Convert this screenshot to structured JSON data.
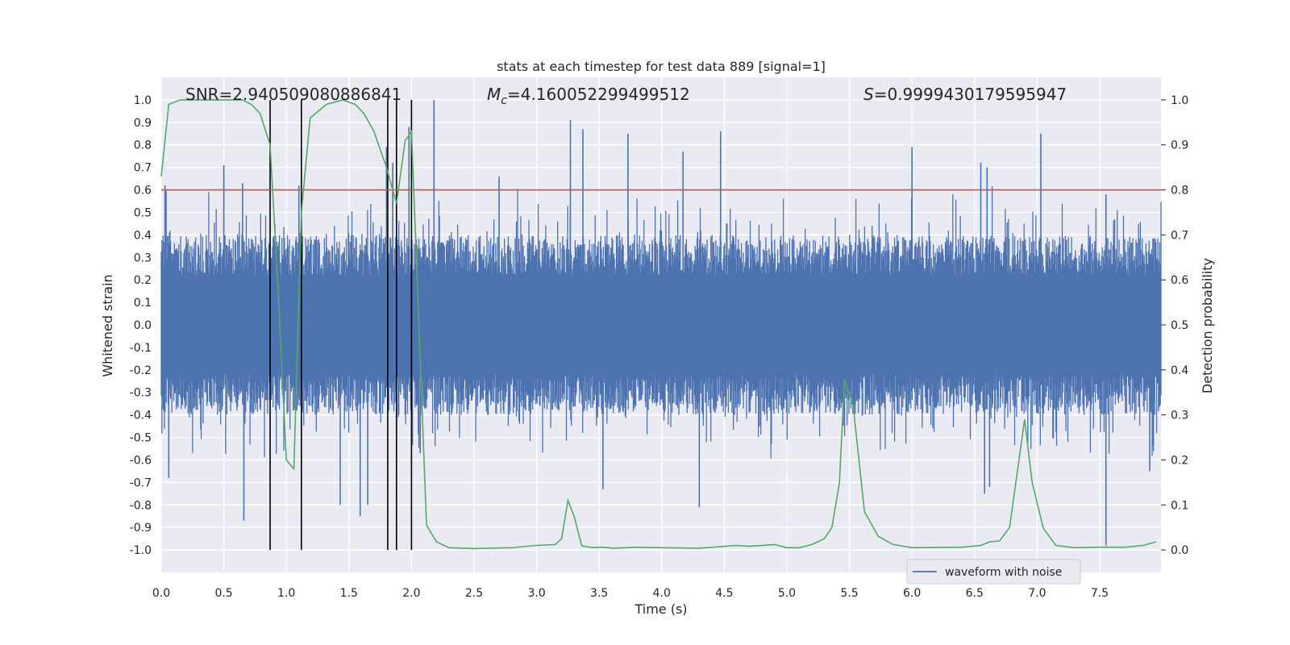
{
  "chart_data": {
    "type": "line",
    "title": "stats at each timestep for test data 889 [signal=1]",
    "xlabel": "Time (s)",
    "ylabel": "Whitened strain",
    "y2label": "Detection probability",
    "xlim": [
      0.0,
      7.99
    ],
    "ylim": [
      -1.1,
      1.1
    ],
    "y2lim": [
      -0.05,
      1.05
    ],
    "xticks": [
      "0.0",
      "0.5",
      "1.0",
      "1.5",
      "2.0",
      "2.5",
      "3.0",
      "3.5",
      "4.0",
      "4.5",
      "5.0",
      "5.5",
      "6.0",
      "6.5",
      "7.0",
      "7.5"
    ],
    "yticks": [
      "-1.0",
      "-0.9",
      "-0.8",
      "-0.7",
      "-0.6",
      "-0.5",
      "-0.4",
      "-0.3",
      "-0.2",
      "-0.1",
      "0.0",
      "0.1",
      "0.2",
      "0.3",
      "0.4",
      "0.5",
      "0.6",
      "0.7",
      "0.8",
      "0.9",
      "1.0"
    ],
    "y2ticks": [
      "0.0",
      "0.1",
      "0.2",
      "0.3",
      "0.4",
      "0.5",
      "0.6",
      "0.7",
      "0.8",
      "0.9",
      "1.0"
    ],
    "annotations": {
      "snr_label": "SNR=2.940509080886841",
      "mc_symbol": "M",
      "mc_subscript": "c",
      "mc_value": "=4.160052299499512",
      "s_symbol": "S",
      "s_value": "=0.9999430179595947"
    },
    "legend": {
      "label": "waveform with noise",
      "location": "lower-right"
    },
    "threshold": {
      "value": 0.8,
      "axis": "right",
      "color": "#c44e52"
    },
    "vlines": [
      0.87,
      1.12,
      1.81,
      1.88,
      2.0
    ],
    "series": [
      {
        "name": "waveform with noise",
        "axis": "left",
        "color": "#4c72b0",
        "note": "dense noisy whitened strain; values synthesized to match visible envelope and peaks",
        "envelope_top": 0.4,
        "envelope_bottom": -0.4,
        "peaks": [
          [
            0.03,
            0.62
          ],
          [
            0.5,
            0.71
          ],
          [
            0.65,
            0.63
          ],
          [
            1.1,
            0.62
          ],
          [
            1.8,
            0.79
          ],
          [
            1.85,
            0.72
          ],
          [
            1.98,
            0.88
          ],
          [
            2.18,
            1.0
          ],
          [
            2.7,
            0.66
          ],
          [
            3.27,
            0.91
          ],
          [
            3.37,
            0.87
          ],
          [
            3.73,
            0.85
          ],
          [
            4.17,
            0.77
          ],
          [
            4.47,
            0.86
          ],
          [
            6.0,
            0.79
          ],
          [
            6.55,
            0.72
          ],
          [
            6.6,
            0.7
          ],
          [
            7.03,
            0.85
          ],
          [
            7.55,
            0.58
          ],
          [
            0.06,
            -0.68
          ],
          [
            0.66,
            -0.87
          ],
          [
            1.43,
            -0.8
          ],
          [
            1.59,
            -0.85
          ],
          [
            1.65,
            -0.8
          ],
          [
            2.07,
            -0.57
          ],
          [
            3.53,
            -0.73
          ],
          [
            4.3,
            -0.81
          ],
          [
            6.58,
            -0.75
          ],
          [
            6.62,
            -0.72
          ],
          [
            7.55,
            -0.98
          ],
          [
            7.9,
            -0.65
          ]
        ]
      },
      {
        "name": "Detection probability",
        "axis": "right",
        "color": "#55a868",
        "x": [
          0.0,
          0.06,
          0.15,
          0.4,
          0.65,
          0.72,
          0.79,
          0.87,
          0.93,
          1.0,
          1.06,
          1.12,
          1.19,
          1.32,
          1.45,
          1.55,
          1.62,
          1.7,
          1.8,
          1.88,
          1.95,
          2.0,
          2.05,
          2.12,
          2.2,
          2.3,
          2.5,
          2.8,
          3.0,
          3.15,
          3.2,
          3.25,
          3.3,
          3.36,
          3.45,
          3.52,
          3.62,
          3.8,
          4.0,
          4.3,
          4.6,
          4.7,
          4.9,
          5.0,
          5.1,
          5.2,
          5.3,
          5.36,
          5.42,
          5.46,
          5.53,
          5.62,
          5.73,
          5.85,
          6.0,
          6.4,
          6.55,
          6.62,
          6.7,
          6.78,
          6.85,
          6.9,
          6.96,
          7.05,
          7.15,
          7.3,
          7.5,
          7.7,
          7.85,
          7.95
        ],
        "values": [
          0.83,
          0.99,
          1.0,
          1.0,
          1.0,
          0.99,
          0.97,
          0.9,
          0.6,
          0.2,
          0.18,
          0.75,
          0.96,
          0.99,
          1.0,
          0.99,
          0.97,
          0.93,
          0.85,
          0.77,
          0.91,
          0.93,
          0.57,
          0.055,
          0.018,
          0.005,
          0.003,
          0.005,
          0.01,
          0.012,
          0.025,
          0.11,
          0.075,
          0.009,
          0.005,
          0.006,
          0.004,
          0.006,
          0.005,
          0.004,
          0.01,
          0.008,
          0.012,
          0.005,
          0.005,
          0.012,
          0.025,
          0.05,
          0.15,
          0.38,
          0.32,
          0.085,
          0.03,
          0.012,
          0.005,
          0.006,
          0.01,
          0.018,
          0.02,
          0.05,
          0.19,
          0.29,
          0.15,
          0.048,
          0.01,
          0.005,
          0.006,
          0.006,
          0.01,
          0.018
        ]
      }
    ]
  }
}
